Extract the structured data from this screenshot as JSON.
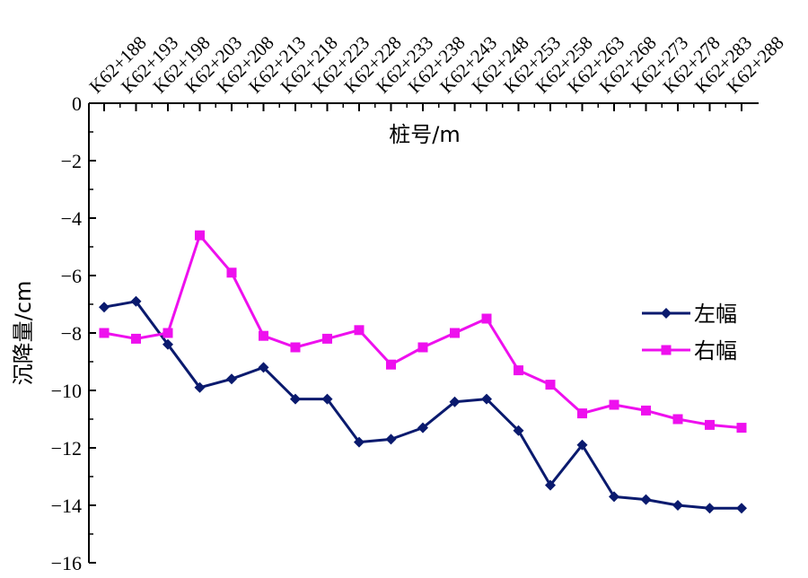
{
  "chart_data": {
    "type": "line",
    "xlabel": "桩号/m",
    "ylabel": "沉降量/cm",
    "ylim": [
      -16,
      0
    ],
    "ytick_step": 2,
    "x_axis_position": "top",
    "legend_position": "right",
    "grid": false,
    "categories": [
      "K62+188",
      "K62+193",
      "K62+198",
      "K62+203",
      "K62+208",
      "K62+213",
      "K62+218",
      "K62+223",
      "K62+228",
      "K62+233",
      "K62+238",
      "K62+243",
      "K62+248",
      "K62+253",
      "K62+258",
      "K62+263",
      "K62+268",
      "K62+273",
      "K62+278",
      "K62+283",
      "K62+288"
    ],
    "series": [
      {
        "name": "左幅",
        "color": "#0a1a6e",
        "marker": "diamond",
        "values": [
          -7.1,
          -6.9,
          -8.4,
          -9.9,
          -9.6,
          -9.2,
          -10.3,
          -10.3,
          -11.8,
          -11.7,
          -11.3,
          -10.4,
          -10.3,
          -11.4,
          -13.3,
          -11.9,
          -13.7,
          -13.8,
          -14.0,
          -14.1,
          -14.1
        ]
      },
      {
        "name": "右幅",
        "color": "#ee10ee",
        "marker": "square",
        "values": [
          -8.0,
          -8.2,
          -8.0,
          -4.6,
          -5.9,
          -8.1,
          -8.5,
          -8.2,
          -7.9,
          -9.1,
          -8.5,
          -8.0,
          -7.5,
          -9.3,
          -9.8,
          -10.8,
          -10.5,
          -10.7,
          -11.0,
          -11.2,
          -11.3
        ]
      }
    ]
  }
}
